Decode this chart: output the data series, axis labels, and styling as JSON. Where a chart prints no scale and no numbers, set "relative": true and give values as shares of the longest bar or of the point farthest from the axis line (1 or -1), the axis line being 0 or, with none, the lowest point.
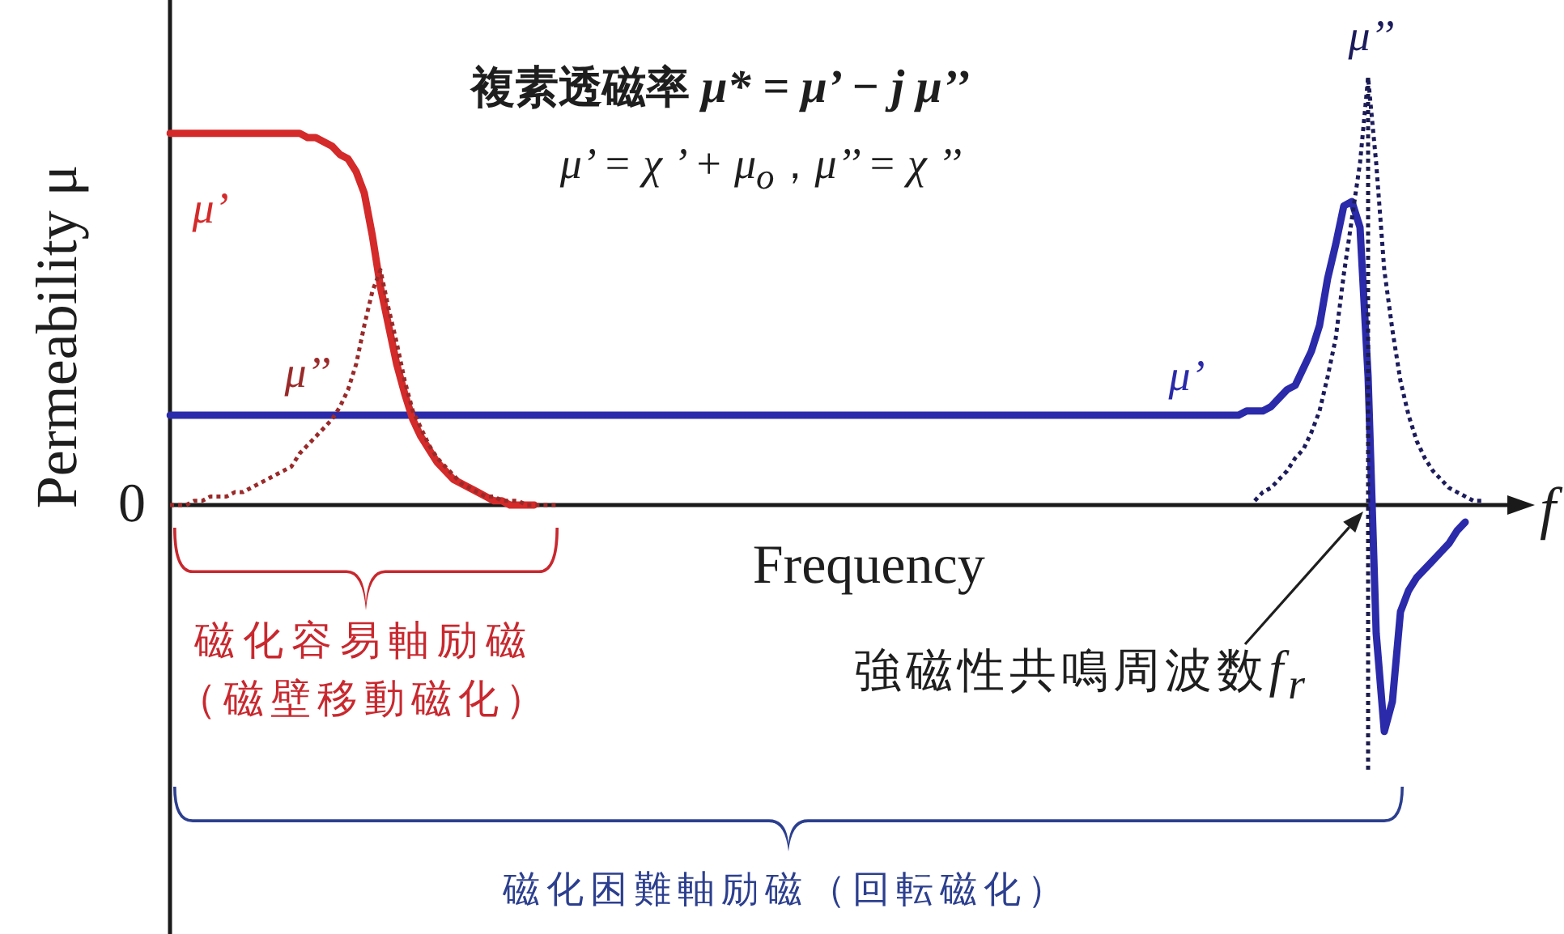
{
  "chart_data": {
    "type": "line",
    "title": "複素透磁率 μ* = μ’ − j μ’’",
    "subtitle": "μ’ = χ ’ + μ$_{o}$，μ’’ = χ ’’",
    "xlabel": "Frequency",
    "ylabel": "Permeability μ",
    "relative": true,
    "categories": [
      null,
      null,
      null,
      null,
      null,
      null,
      null,
      null,
      null,
      null,
      null,
      null,
      null,
      null,
      null,
      null,
      null,
      null,
      null,
      null,
      null,
      null,
      null,
      null,
      null,
      null,
      null,
      null,
      null,
      null,
      null,
      null,
      null,
      null,
      null,
      null,
      null,
      null,
      null,
      null,
      null,
      null,
      null,
      null,
      null,
      null,
      null,
      null,
      null,
      null,
      null,
      null,
      null,
      null,
      null,
      null,
      null,
      null,
      null,
      null,
      null,
      null,
      null,
      null,
      null,
      null,
      null,
      null,
      null,
      null,
      null,
      null,
      null,
      null,
      null,
      null,
      null,
      null,
      null,
      null,
      null,
      null,
      null,
      null,
      null,
      null,
      null,
      null,
      null,
      null,
      null,
      null,
      null,
      null,
      null,
      null,
      null,
      null,
      null,
      null,
      null,
      null,
      null,
      null,
      null,
      null,
      null,
      null,
      null,
      null,
      null,
      null,
      null,
      null,
      null,
      null,
      null,
      null,
      null,
      null,
      null,
      null,
      null,
      null,
      null,
      null,
      null,
      null,
      null,
      null,
      null,
      null,
      null,
      null,
      null,
      null,
      null,
      null,
      null,
      null,
      null,
      null,
      null,
      null,
      null,
      null,
      null,
      null,
      null,
      null,
      null,
      null,
      null,
      null,
      null,
      null,
      null,
      null,
      null,
      null,
      null,
      null,
      null,
      null,
      null,
      null,
      null
    ],
    "series": [
      {
        "name": "μ’",
        "color": "#d42a2a",
        "line_style": "solid",
        "values": [
          0.87,
          0.87,
          0.87,
          0.87,
          0.87,
          0.87,
          0.87,
          0.87,
          0.87,
          0.87,
          0.87,
          0.87,
          0.87,
          0.87,
          0.87,
          0.87,
          0.87,
          0.86,
          0.86,
          0.85,
          0.84,
          0.82,
          0.81,
          0.78,
          0.73,
          0.63,
          0.51,
          0.42,
          0.33,
          0.26,
          0.2,
          0.16,
          0.13,
          0.1,
          0.08,
          0.06,
          0.05,
          0.04,
          0.03,
          0.02,
          0.01,
          0.01,
          0,
          0,
          0,
          0,
          null,
          null,
          null,
          null,
          null,
          null,
          null,
          null,
          null,
          null,
          null,
          null,
          null,
          null,
          null,
          null,
          null,
          null,
          null,
          null,
          null,
          null,
          null,
          null,
          null,
          null,
          null,
          null,
          null,
          null,
          null,
          null,
          null,
          null,
          null,
          null,
          null,
          null,
          null,
          null,
          null,
          null,
          null,
          null,
          null,
          null,
          null,
          null,
          null,
          null,
          null,
          null,
          null,
          null,
          null,
          null,
          null,
          null,
          null,
          null,
          null,
          null,
          null,
          null,
          null,
          null,
          null,
          null,
          null,
          null,
          null,
          null,
          null,
          null,
          null,
          null,
          null,
          null,
          null,
          null,
          null,
          null,
          null,
          null,
          null,
          null,
          null,
          null,
          null,
          null,
          null,
          null,
          null,
          null,
          null,
          null,
          null,
          null,
          null,
          null,
          null,
          null,
          null,
          null,
          null,
          null,
          null,
          null,
          null,
          null,
          null,
          null,
          null,
          null,
          null,
          null,
          null,
          null,
          null,
          null,
          null
        ]
      },
      {
        "name": "μ’’",
        "color": "#9a2a2a",
        "line_style": "dotted",
        "values": [
          0,
          0,
          0,
          0.01,
          0.01,
          0.02,
          0.02,
          0.02,
          0.03,
          0.03,
          0.04,
          0.05,
          0.06,
          0.07,
          0.08,
          0.09,
          0.12,
          0.14,
          0.16,
          0.18,
          0.2,
          0.23,
          0.27,
          0.33,
          0.42,
          0.5,
          0.55,
          0.46,
          0.38,
          0.29,
          0.22,
          0.18,
          0.14,
          0.11,
          0.09,
          0.07,
          0.05,
          0.04,
          0.03,
          0.02,
          0.02,
          0.01,
          0.01,
          0.01,
          0,
          0,
          0,
          0,
          0,
          null,
          null,
          null,
          null,
          null,
          null,
          null,
          null,
          null,
          null,
          null,
          null,
          null,
          null,
          null,
          null,
          null,
          null,
          null,
          null,
          null,
          null,
          null,
          null,
          null,
          null,
          null,
          null,
          null,
          null,
          null,
          null,
          null,
          null,
          null,
          null,
          null,
          null,
          null,
          null,
          null,
          null,
          null,
          null,
          null,
          null,
          null,
          null,
          null,
          null,
          null,
          null,
          null,
          null,
          null,
          null,
          null,
          null,
          null,
          null,
          null,
          null,
          null,
          null,
          null,
          null,
          null,
          null,
          null,
          null,
          null,
          null,
          null,
          null,
          null,
          null,
          null,
          null,
          null,
          null,
          null,
          null,
          null,
          null,
          null,
          null,
          null,
          null,
          null,
          null,
          null,
          null,
          null,
          null,
          null,
          null,
          null,
          null,
          null,
          null,
          null,
          null,
          null,
          null,
          null,
          null,
          null,
          null,
          null,
          null,
          null,
          null,
          null,
          null,
          null,
          null,
          null,
          null
        ]
      },
      {
        "name": "μ’",
        "color": "#2a2aaa",
        "line_style": "solid",
        "values": [
          0.21,
          0.21,
          0.21,
          0.21,
          0.21,
          0.21,
          0.21,
          0.21,
          0.21,
          0.21,
          0.21,
          0.21,
          0.21,
          0.21,
          0.21,
          0.21,
          0.21,
          0.21,
          0.21,
          0.21,
          0.21,
          0.21,
          0.21,
          0.21,
          0.21,
          0.21,
          0.21,
          0.21,
          0.21,
          0.21,
          0.21,
          0.21,
          0.21,
          0.21,
          0.21,
          0.21,
          0.21,
          0.21,
          0.21,
          0.21,
          0.21,
          0.21,
          0.21,
          0.21,
          0.21,
          0.21,
          0.21,
          0.21,
          0.21,
          0.21,
          0.21,
          0.21,
          0.21,
          0.21,
          0.21,
          0.21,
          0.21,
          0.21,
          0.21,
          0.21,
          0.21,
          0.21,
          0.21,
          0.21,
          0.21,
          0.21,
          0.21,
          0.21,
          0.21,
          0.21,
          0.21,
          0.21,
          0.21,
          0.21,
          0.21,
          0.21,
          0.21,
          0.21,
          0.21,
          0.21,
          0.21,
          0.21,
          0.21,
          0.21,
          0.21,
          0.21,
          0.21,
          0.21,
          0.21,
          0.21,
          0.21,
          0.21,
          0.21,
          0.21,
          0.21,
          0.21,
          0.21,
          0.21,
          0.21,
          0.21,
          0.21,
          0.21,
          0.21,
          0.21,
          0.21,
          0.21,
          0.21,
          0.21,
          0.21,
          0.21,
          0.21,
          0.21,
          0.21,
          0.21,
          0.21,
          0.21,
          0.21,
          0.21,
          0.21,
          0.21,
          0.21,
          0.21,
          0.21,
          0.21,
          0.21,
          0.21,
          0.21,
          0.21,
          0.21,
          0.21,
          0.21,
          0.21,
          0.21,
          0.22,
          0.22,
          0.22,
          0.23,
          0.25,
          0.27,
          0.28,
          0.32,
          0.36,
          0.42,
          0.53,
          0.61,
          0.7,
          0.71,
          0.65,
          0.3,
          -0.3,
          -0.53,
          -0.46,
          -0.25,
          -0.2,
          -0.17,
          -0.15,
          -0.13,
          -0.11,
          -0.09,
          -0.06,
          -0.04,
          null,
          null,
          null,
          null,
          null,
          null
        ]
      },
      {
        "name": "μ’’",
        "color": "#1c1c5c",
        "line_style": "dotted",
        "values": [
          null,
          null,
          null,
          null,
          null,
          null,
          null,
          null,
          null,
          null,
          null,
          null,
          null,
          null,
          null,
          null,
          null,
          null,
          null,
          null,
          null,
          null,
          null,
          null,
          null,
          null,
          null,
          null,
          null,
          null,
          null,
          null,
          null,
          null,
          null,
          null,
          null,
          null,
          null,
          null,
          null,
          null,
          null,
          null,
          null,
          null,
          null,
          null,
          null,
          null,
          null,
          null,
          null,
          null,
          null,
          null,
          null,
          null,
          null,
          null,
          null,
          null,
          null,
          null,
          null,
          null,
          null,
          null,
          null,
          null,
          null,
          null,
          null,
          null,
          null,
          null,
          null,
          null,
          null,
          null,
          null,
          null,
          null,
          null,
          null,
          null,
          null,
          null,
          null,
          null,
          null,
          null,
          null,
          null,
          null,
          null,
          null,
          null,
          null,
          null,
          null,
          null,
          null,
          null,
          null,
          null,
          null,
          null,
          null,
          null,
          null,
          null,
          null,
          null,
          null,
          null,
          null,
          null,
          null,
          null,
          null,
          null,
          null,
          null,
          null,
          null,
          null,
          null,
          null,
          null,
          null,
          null,
          null,
          null,
          0.01,
          0.03,
          0.04,
          0.06,
          0.08,
          0.11,
          0.13,
          0.17,
          0.22,
          0.3,
          0.39,
          0.54,
          0.67,
          0.8,
          1,
          0.8,
          0.55,
          0.41,
          0.29,
          0.21,
          0.15,
          0.11,
          0.08,
          0.06,
          0.04,
          0.03,
          0.02,
          0.01,
          0.01,
          null,
          null,
          null,
          null
        ]
      }
    ],
    "annotations": [
      "0",
      "f",
      "磁化容易軸励磁",
      "（磁壁移動磁化）",
      "磁化困難軸励磁（回転磁化）",
      "強磁性共鳴周波数f$_{r}$"
    ]
  }
}
